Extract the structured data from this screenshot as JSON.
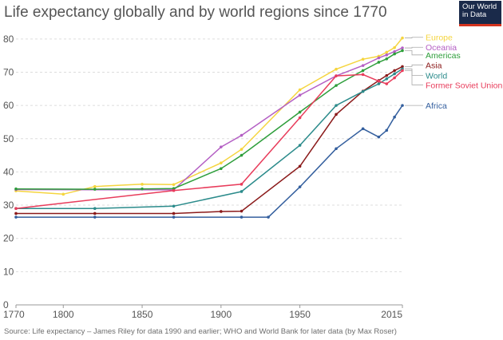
{
  "title": "Life expectancy globally and by world regions since 1770",
  "logo": {
    "line1": "Our World",
    "line2": "in Data"
  },
  "source": "Source: Life expectancy – James Riley for data 1990 and earlier; WHO and World Bank for later data (by Max Roser)",
  "colors": {
    "grid": "#dddddd",
    "axis": "#999999",
    "text": "#555555"
  },
  "chart_data": {
    "type": "line",
    "title": "Life expectancy globally and by world regions since 1770",
    "xlim": [
      1770,
      2015
    ],
    "ylim": [
      0,
      85
    ],
    "x_ticks": [
      1770,
      1800,
      1850,
      1900,
      1950,
      2015
    ],
    "y_ticks": [
      0,
      10,
      20,
      30,
      40,
      50,
      60,
      70,
      80
    ],
    "grid": true,
    "legend": "right-end labels",
    "series": [
      {
        "name": "Europe",
        "color": "#f5d53f",
        "label_y": 80.5,
        "points": [
          [
            1770,
            34.3
          ],
          [
            1800,
            33.3
          ],
          [
            1820,
            35.6
          ],
          [
            1850,
            36.3
          ],
          [
            1870,
            36.2
          ],
          [
            1900,
            42.7
          ],
          [
            1913,
            46.8
          ],
          [
            1950,
            64.7
          ],
          [
            1973,
            70.9
          ],
          [
            1990,
            73.9
          ],
          [
            2000,
            74.8
          ],
          [
            2005,
            76.0
          ],
          [
            2010,
            77.4
          ],
          [
            2015,
            80.3
          ]
        ]
      },
      {
        "name": "Oceania",
        "color": "#b45fc4",
        "label_y": 77.5,
        "points": [
          [
            1770,
            34.7
          ],
          [
            1870,
            34.6
          ],
          [
            1900,
            47.5
          ],
          [
            1913,
            51.0
          ],
          [
            1950,
            63.1
          ],
          [
            1973,
            68.9
          ],
          [
            1990,
            72.0
          ],
          [
            2000,
            74.3
          ],
          [
            2005,
            75.2
          ],
          [
            2010,
            76.2
          ],
          [
            2015,
            77.3
          ]
        ]
      },
      {
        "name": "Americas",
        "color": "#2e9e3b",
        "label_y": 75.2,
        "points": [
          [
            1770,
            34.9
          ],
          [
            1820,
            34.8
          ],
          [
            1850,
            34.9
          ],
          [
            1870,
            35.0
          ],
          [
            1900,
            41.0
          ],
          [
            1913,
            45.0
          ],
          [
            1950,
            58.0
          ],
          [
            1973,
            66.0
          ],
          [
            1990,
            70.5
          ],
          [
            2000,
            73.0
          ],
          [
            2005,
            74.0
          ],
          [
            2010,
            75.5
          ],
          [
            2015,
            76.5
          ]
        ]
      },
      {
        "name": "Asia",
        "color": "#8b1a1a",
        "label_y": 72.2,
        "points": [
          [
            1770,
            27.5
          ],
          [
            1820,
            27.5
          ],
          [
            1870,
            27.5
          ],
          [
            1900,
            28.1
          ],
          [
            1913,
            28.2
          ],
          [
            1950,
            41.7
          ],
          [
            1973,
            57.3
          ],
          [
            1990,
            64.3
          ],
          [
            2000,
            67.5
          ],
          [
            2005,
            69.0
          ],
          [
            2010,
            70.5
          ],
          [
            2015,
            71.7
          ]
        ]
      },
      {
        "name": "World",
        "color": "#2b8b8b",
        "label_y": 69.0,
        "points": [
          [
            1770,
            29.0
          ],
          [
            1820,
            29.0
          ],
          [
            1870,
            29.7
          ],
          [
            1913,
            34.1
          ],
          [
            1950,
            48.0
          ],
          [
            1973,
            60.0
          ],
          [
            1990,
            64.2
          ],
          [
            2000,
            66.5
          ],
          [
            2005,
            68.0
          ],
          [
            2010,
            69.5
          ],
          [
            2015,
            71.0
          ]
        ]
      },
      {
        "name": "Former Soviet Union",
        "color": "#e83c5b",
        "label_y": 66.2,
        "points": [
          [
            1770,
            29.0
          ],
          [
            1870,
            34.4
          ],
          [
            1913,
            36.3
          ],
          [
            1950,
            56.3
          ],
          [
            1973,
            68.9
          ],
          [
            1990,
            69.3
          ],
          [
            2000,
            67.3
          ],
          [
            2005,
            66.5
          ],
          [
            2010,
            68.3
          ],
          [
            2015,
            70.5
          ]
        ]
      },
      {
        "name": "Africa",
        "color": "#345f9e",
        "label_y": 60.0,
        "points": [
          [
            1770,
            26.4
          ],
          [
            1820,
            26.4
          ],
          [
            1870,
            26.4
          ],
          [
            1913,
            26.4
          ],
          [
            1930,
            26.4
          ],
          [
            1950,
            35.5
          ],
          [
            1973,
            47.0
          ],
          [
            1990,
            53.0
          ],
          [
            2000,
            50.5
          ],
          [
            2005,
            52.5
          ],
          [
            2010,
            56.5
          ],
          [
            2015,
            60.0
          ]
        ]
      }
    ]
  }
}
